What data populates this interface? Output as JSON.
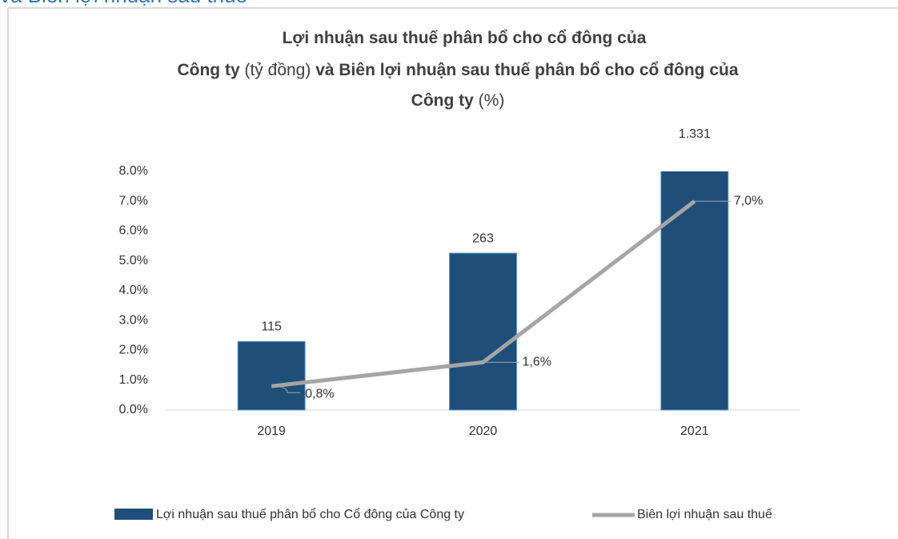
{
  "heading": "và Biên lợi nhuận sau thuế",
  "chart_data": {
    "type": "bar_line",
    "title": [
      "Lợi nhuận sau thuế phân bổ cho cổ đông của",
      "Công ty",
      "(tỷ đồng)",
      "và Biên lợi nhuận sau thuế phân bổ cho cổ đông của",
      "Công ty",
      "(%)"
    ],
    "categories": [
      "2019",
      "2020",
      "2021"
    ],
    "series": [
      {
        "name": "Lợi nhuận sau thuế phân bổ cho Cổ đông của Công ty",
        "color": "#1f4e79",
        "type": "bar",
        "axis": "y2",
        "values": [
          115,
          263,
          1331
        ],
        "value_labels": [
          "115",
          "263",
          "1.331"
        ]
      },
      {
        "name": "Biên lợi nhuận sau thuế",
        "color": "#a5a5a5",
        "type": "line",
        "values": [
          0.8,
          1.6,
          7.0
        ],
        "value_labels": [
          "0,8%",
          "1,6%",
          "7,0%"
        ]
      }
    ],
    "ylim": [
      0,
      8
    ],
    "yticks": [
      {
        "value": 0,
        "label": "0.0%"
      },
      {
        "value": 1,
        "label": "1.0%"
      },
      {
        "value": 2,
        "label": "2.0%"
      },
      {
        "value": 3,
        "label": "3.0%"
      },
      {
        "value": 4,
        "label": "4.0%"
      },
      {
        "value": 5,
        "label": "5.0%"
      },
      {
        "value": 6,
        "label": "6.0%"
      },
      {
        "value": 7,
        "label": "7.0%"
      },
      {
        "value": 8,
        "label": "8.0%"
      }
    ],
    "y2lim": [
      0,
      400
    ]
  }
}
